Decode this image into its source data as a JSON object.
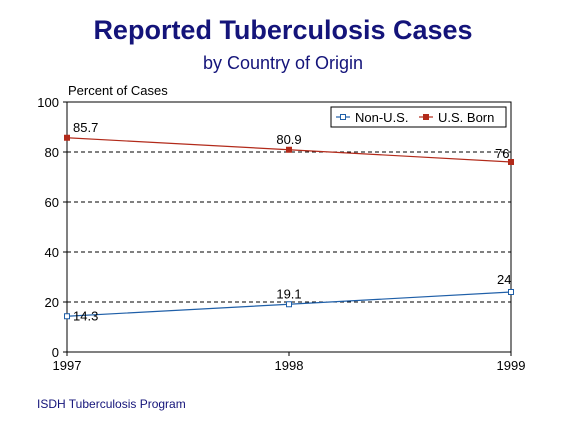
{
  "chart_data": {
    "type": "line",
    "title": "Reported Tuberculosis Cases",
    "subtitle": "by Country of Origin",
    "ylabel": "Percent of Cases",
    "xlabel": "",
    "x": [
      "1997",
      "1998",
      "1999"
    ],
    "yticks": [
      "0",
      "20",
      "40",
      "60",
      "80",
      "100"
    ],
    "ylim": [
      0,
      100
    ],
    "grid": "horizontal dashed",
    "legend_placement": "top-right",
    "series": [
      {
        "name": "Non-U.S.",
        "values": [
          14.3,
          19.1,
          24
        ],
        "labels": [
          "14.3",
          "19.1",
          "24"
        ],
        "color": "#1f5fa8",
        "marker": "square-open"
      },
      {
        "name": "U.S. Born",
        "values": [
          85.7,
          80.9,
          76
        ],
        "labels": [
          "85.7",
          "80.9",
          "76"
        ],
        "color": "#b22a1a",
        "marker": "square-filled"
      }
    ]
  },
  "footer": "ISDH Tuberculosis Program"
}
